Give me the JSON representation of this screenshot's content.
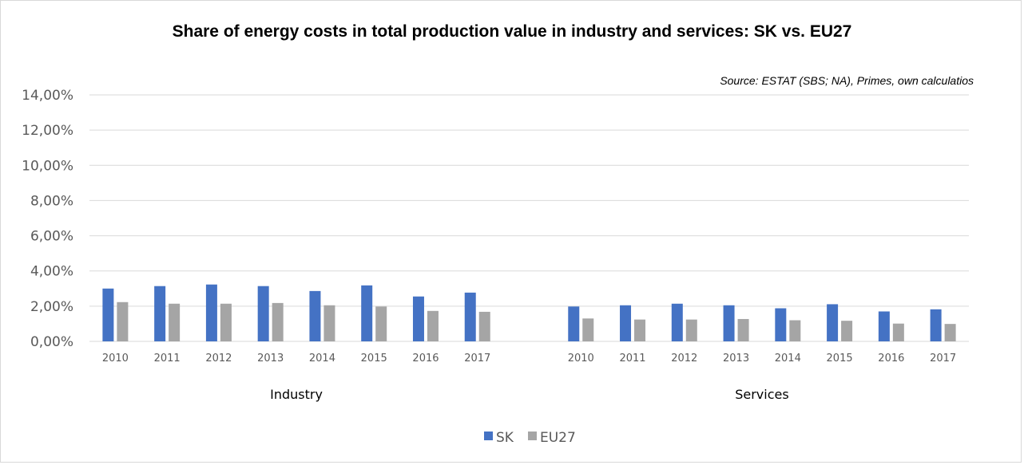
{
  "chart_data": {
    "type": "bar",
    "title": "Share of energy costs in total production value in industry and services: SK vs. EU27",
    "source_note": "Source: ESTAT (SBS; NA), Primes, own calculatios",
    "xlabel": "",
    "ylabel": "",
    "ylim": [
      0,
      14
    ],
    "yticks": [
      "0,00%",
      "2,00%",
      "4,00%",
      "6,00%",
      "8,00%",
      "10,00%",
      "12,00%",
      "14,00%"
    ],
    "ytick_values": [
      0,
      2,
      4,
      6,
      8,
      10,
      12,
      14
    ],
    "grid": true,
    "legend_position": "bottom",
    "groups": [
      {
        "name": "Industry",
        "categories": [
          "2010",
          "2011",
          "2012",
          "2013",
          "2014",
          "2015",
          "2016",
          "2017"
        ],
        "series": [
          {
            "name": "SK",
            "values": [
              3.0,
              3.14,
              3.23,
              3.14,
              2.86,
              3.18,
              2.55,
              2.77
            ]
          },
          {
            "name": "EU27",
            "values": [
              2.23,
              2.14,
              2.14,
              2.18,
              2.05,
              1.98,
              1.73,
              1.68
            ]
          }
        ]
      },
      {
        "name": "Services",
        "categories": [
          "2010",
          "2011",
          "2012",
          "2013",
          "2014",
          "2015",
          "2016",
          "2017"
        ],
        "series": [
          {
            "name": "SK",
            "values": [
              1.98,
              2.05,
              2.14,
              2.05,
              1.88,
              2.11,
              1.7,
              1.82
            ]
          },
          {
            "name": "EU27",
            "values": [
              1.3,
              1.24,
              1.24,
              1.27,
              1.2,
              1.17,
              1.01,
              0.99
            ]
          }
        ]
      }
    ],
    "legend": [
      {
        "name": "SK",
        "color": "#4472c4"
      },
      {
        "name": "EU27",
        "color": "#a5a5a5"
      }
    ]
  }
}
